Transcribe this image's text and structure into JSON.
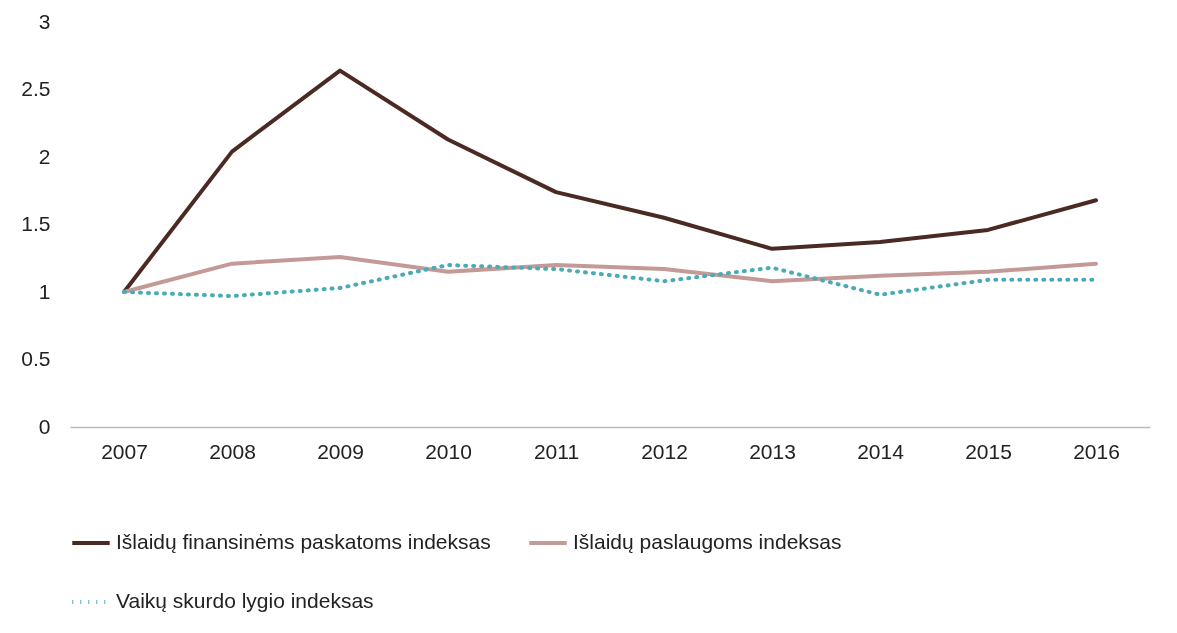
{
  "chart_data": {
    "type": "line",
    "categories": [
      "2007",
      "2008",
      "2009",
      "2010",
      "2011",
      "2012",
      "2013",
      "2014",
      "2015",
      "2016"
    ],
    "ylim": [
      0,
      3
    ],
    "yticks": [
      0,
      0.5,
      1,
      1.5,
      2,
      2.5,
      3
    ],
    "grid": false,
    "legend": "bottom",
    "marker": "none",
    "series": [
      {
        "name": "Išlaidų finansinėms paskatoms indeksas",
        "color": "#4a2a22",
        "line_style": "solid",
        "values": [
          1.0,
          2.04,
          2.64,
          2.13,
          1.74,
          1.55,
          1.32,
          1.37,
          1.46,
          1.68
        ]
      },
      {
        "name": "Išlaidų paslaugoms indeksas",
        "color": "#c49a96",
        "line_style": "solid",
        "values": [
          1.0,
          1.21,
          1.26,
          1.15,
          1.2,
          1.17,
          1.08,
          1.12,
          1.15,
          1.21
        ]
      },
      {
        "name": "Vaikų skurdo lygio indeksas",
        "color": "#4aabb8",
        "line_style": "dotted",
        "values": [
          1.0,
          0.97,
          1.03,
          1.2,
          1.17,
          1.08,
          1.18,
          0.98,
          1.09,
          1.09
        ]
      }
    ]
  }
}
